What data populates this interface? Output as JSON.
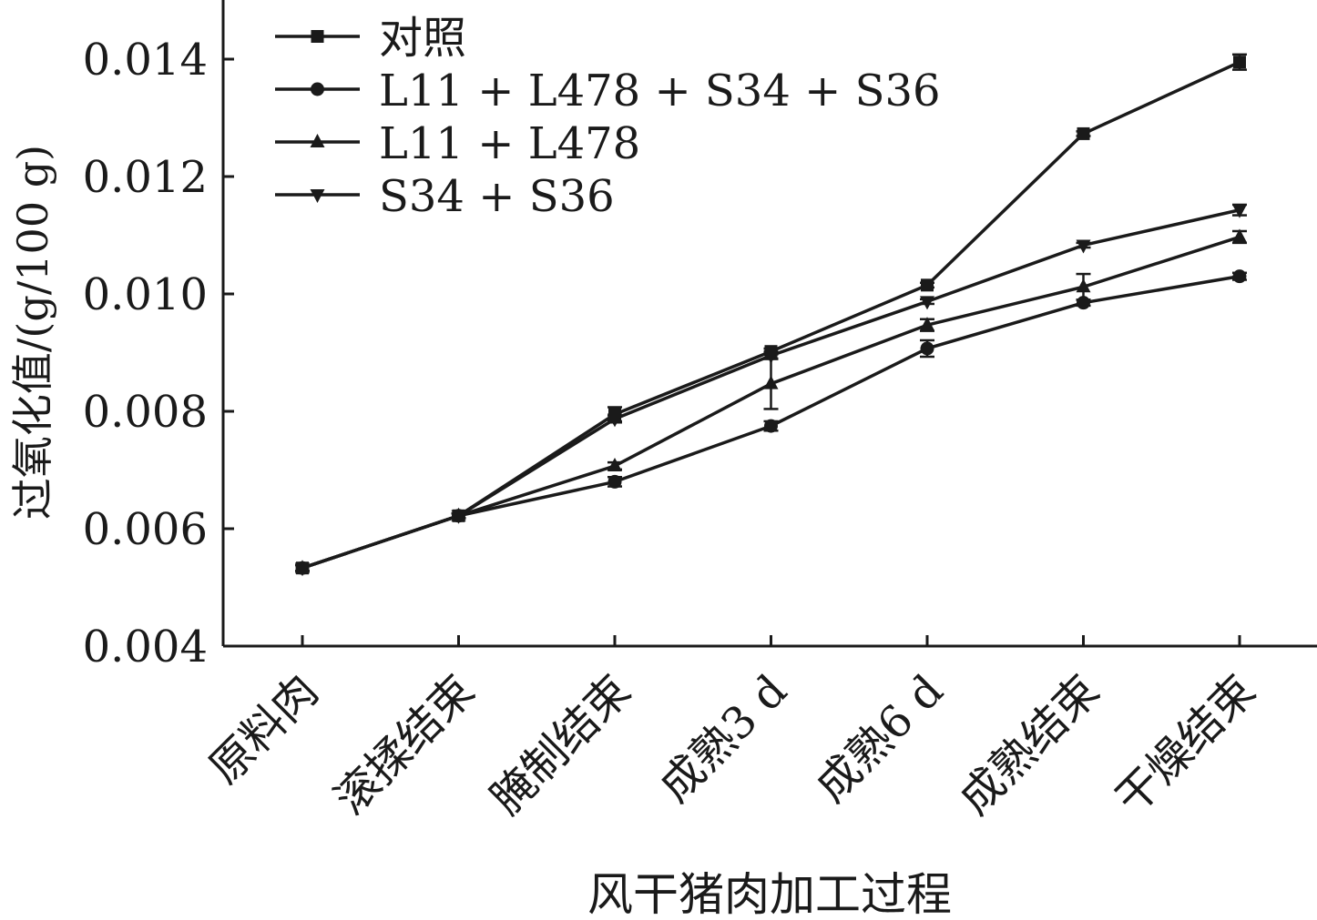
{
  "chart_data": {
    "type": "line",
    "title": "",
    "xlabel": "风干猪肉加工过程",
    "ylabel": "过氧化值/(g/100 g)",
    "categories": [
      "原料肉",
      "滚揉结束",
      "腌制结束",
      "成熟3 d",
      "成熟6 d",
      "成熟结束",
      "干燥结束"
    ],
    "ylim": [
      0.004,
      0.015
    ],
    "yticks": [
      "0.004",
      "0.006",
      "0.008",
      "0.010",
      "0.012",
      "0.014"
    ],
    "ytick_values": [
      0.004,
      0.006,
      0.008,
      0.01,
      0.012,
      0.014
    ],
    "grid": false,
    "legend_position": "top-left",
    "series": [
      {
        "name": "对照",
        "marker": "square",
        "values": [
          0.00533,
          0.00622,
          0.00795,
          0.00902,
          0.01015,
          0.01273,
          0.01395
        ],
        "errors": [
          5e-05,
          4e-05,
          0.00012,
          5e-05,
          4e-05,
          4e-05,
          0.00013
        ]
      },
      {
        "name": "L11 + L478 + S34 + S36",
        "marker": "circle",
        "values": [
          0.00533,
          0.00622,
          0.0068,
          0.00775,
          0.00907,
          0.00985,
          0.0103
        ],
        "errors": [
          5e-05,
          4e-05,
          8e-05,
          8e-05,
          0.00014,
          5e-05,
          6e-05
        ]
      },
      {
        "name": "L11 + L478",
        "marker": "triangle-up",
        "values": [
          0.00533,
          0.00622,
          0.00707,
          0.00847,
          0.00947,
          0.01012,
          0.01097
        ],
        "errors": [
          5e-05,
          4e-05,
          6e-05,
          0.00043,
          0.0001,
          0.00022,
          0.0001
        ]
      },
      {
        "name": "S34 + S36",
        "marker": "triangle-down",
        "values": [
          0.00533,
          0.00622,
          0.00787,
          0.00895,
          0.00987,
          0.01083,
          0.01143
        ],
        "errors": [
          5e-05,
          4e-05,
          6e-05,
          6e-05,
          4e-05,
          4e-05,
          9e-05
        ]
      }
    ]
  }
}
